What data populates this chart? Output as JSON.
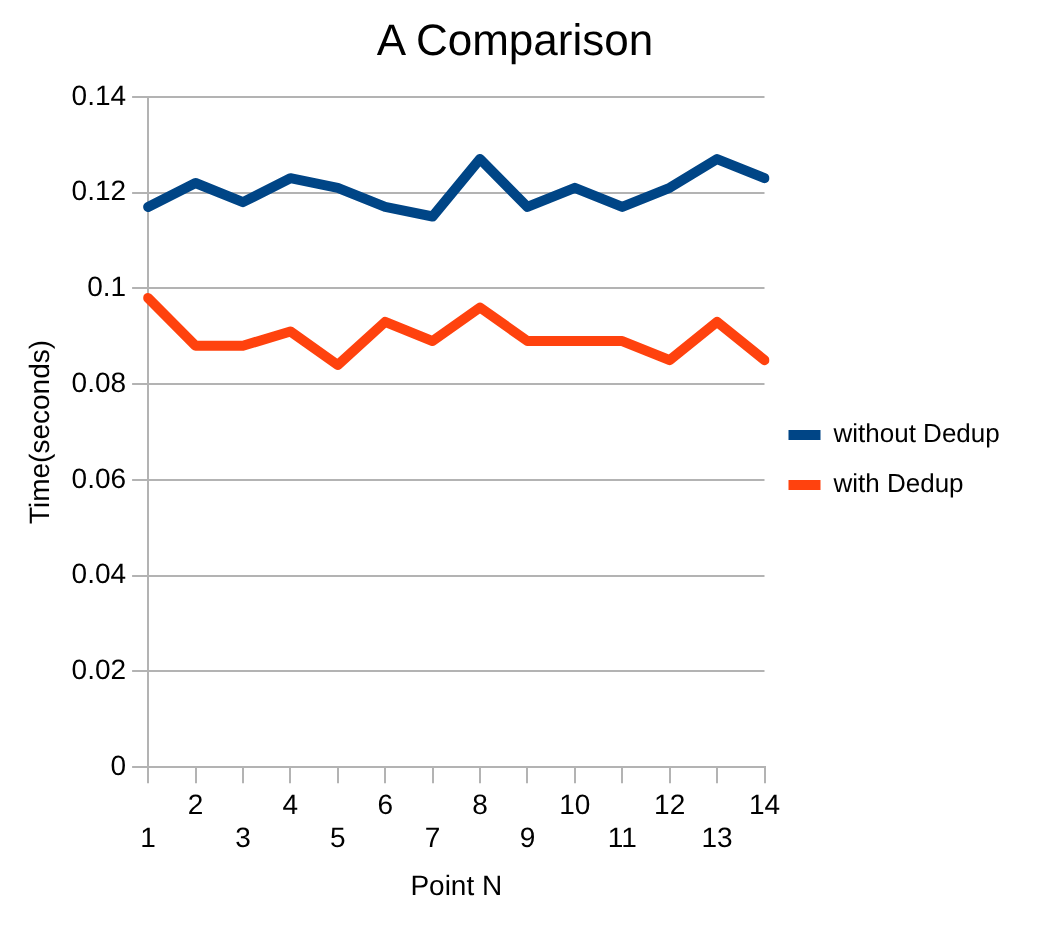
{
  "chart_data": {
    "type": "line",
    "title": "A Comparison",
    "xlabel": "Point N",
    "ylabel": "Time(seconds)",
    "categories": [
      "1",
      "2",
      "3",
      "4",
      "5",
      "6",
      "7",
      "8",
      "9",
      "10",
      "11",
      "12",
      "13",
      "14"
    ],
    "series": [
      {
        "name": "without Dedup",
        "color": "#004586",
        "values": [
          0.117,
          0.122,
          0.118,
          0.123,
          0.121,
          0.117,
          0.115,
          0.127,
          0.117,
          0.121,
          0.117,
          0.121,
          0.127,
          0.123
        ]
      },
      {
        "name": "with Dedup",
        "color": "#ff420e",
        "values": [
          0.098,
          0.088,
          0.088,
          0.091,
          0.084,
          0.093,
          0.089,
          0.096,
          0.089,
          0.089,
          0.089,
          0.085,
          0.093,
          0.085
        ]
      }
    ],
    "ylim": [
      0,
      0.14
    ],
    "yticks": [
      0,
      0.02,
      0.04,
      0.06,
      0.08,
      0.1,
      0.12,
      0.14
    ],
    "grid": "y",
    "legend": "right",
    "marker": "none",
    "line_style": "solid"
  }
}
